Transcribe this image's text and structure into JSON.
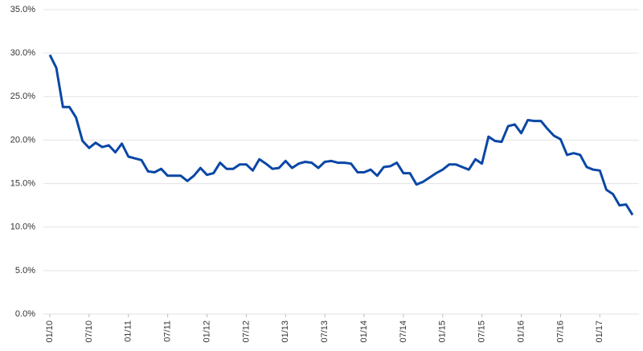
{
  "chart_data": {
    "type": "line",
    "categories": [
      "01/10",
      null,
      null,
      null,
      null,
      null,
      "07/10",
      null,
      null,
      null,
      null,
      null,
      "01/11",
      null,
      null,
      null,
      null,
      null,
      "07/11",
      null,
      null,
      null,
      null,
      null,
      "01/12",
      null,
      null,
      null,
      null,
      null,
      "07/12",
      null,
      null,
      null,
      null,
      null,
      "01/13",
      null,
      null,
      null,
      null,
      null,
      "07/13",
      null,
      null,
      null,
      null,
      null,
      "01/14",
      null,
      null,
      null,
      null,
      null,
      "07/14",
      null,
      null,
      null,
      null,
      null,
      "01/15",
      null,
      null,
      null,
      null,
      null,
      "07/15",
      null,
      null,
      null,
      null,
      null,
      "01/16",
      null,
      null,
      null,
      null,
      null,
      "07/16",
      null,
      null,
      null,
      null,
      null,
      "01/17",
      null,
      null,
      null,
      null,
      null
    ],
    "values": [
      29.8,
      28.3,
      23.8,
      23.8,
      22.6,
      19.9,
      19.1,
      19.7,
      19.2,
      19.4,
      18.6,
      19.6,
      18.1,
      17.9,
      17.7,
      16.4,
      16.3,
      16.7,
      15.9,
      15.9,
      15.9,
      15.3,
      15.9,
      16.8,
      16.0,
      16.2,
      17.4,
      16.7,
      16.7,
      17.2,
      17.2,
      16.5,
      17.8,
      17.3,
      16.7,
      16.8,
      17.6,
      16.8,
      17.3,
      17.5,
      17.4,
      16.8,
      17.5,
      17.6,
      17.4,
      17.4,
      17.3,
      16.3,
      16.3,
      16.6,
      15.9,
      16.9,
      17.0,
      17.4,
      16.2,
      16.2,
      14.9,
      15.2,
      15.7,
      16.2,
      16.6,
      17.2,
      17.2,
      16.9,
      16.6,
      17.8,
      17.3,
      20.4,
      19.9,
      19.8,
      21.6,
      21.8,
      20.8,
      22.3,
      22.2,
      22.2,
      21.3,
      20.5,
      20.1,
      18.3,
      18.5,
      18.3,
      16.9,
      16.6,
      16.5,
      14.3,
      13.8,
      12.5,
      12.6,
      11.4
    ],
    "color": "#0a47a6",
    "ylim": [
      0,
      35
    ],
    "yticks": [
      {
        "value": 0,
        "label": "0.0%"
      },
      {
        "value": 5,
        "label": "5.0%"
      },
      {
        "value": 10,
        "label": "10.0%"
      },
      {
        "value": 15,
        "label": "15.0%"
      },
      {
        "value": 20,
        "label": "20.0%"
      },
      {
        "value": 25,
        "label": "25.0%"
      },
      {
        "value": 30,
        "label": "30.0%"
      },
      {
        "value": 35,
        "label": "35.0%"
      }
    ],
    "grid": true
  }
}
